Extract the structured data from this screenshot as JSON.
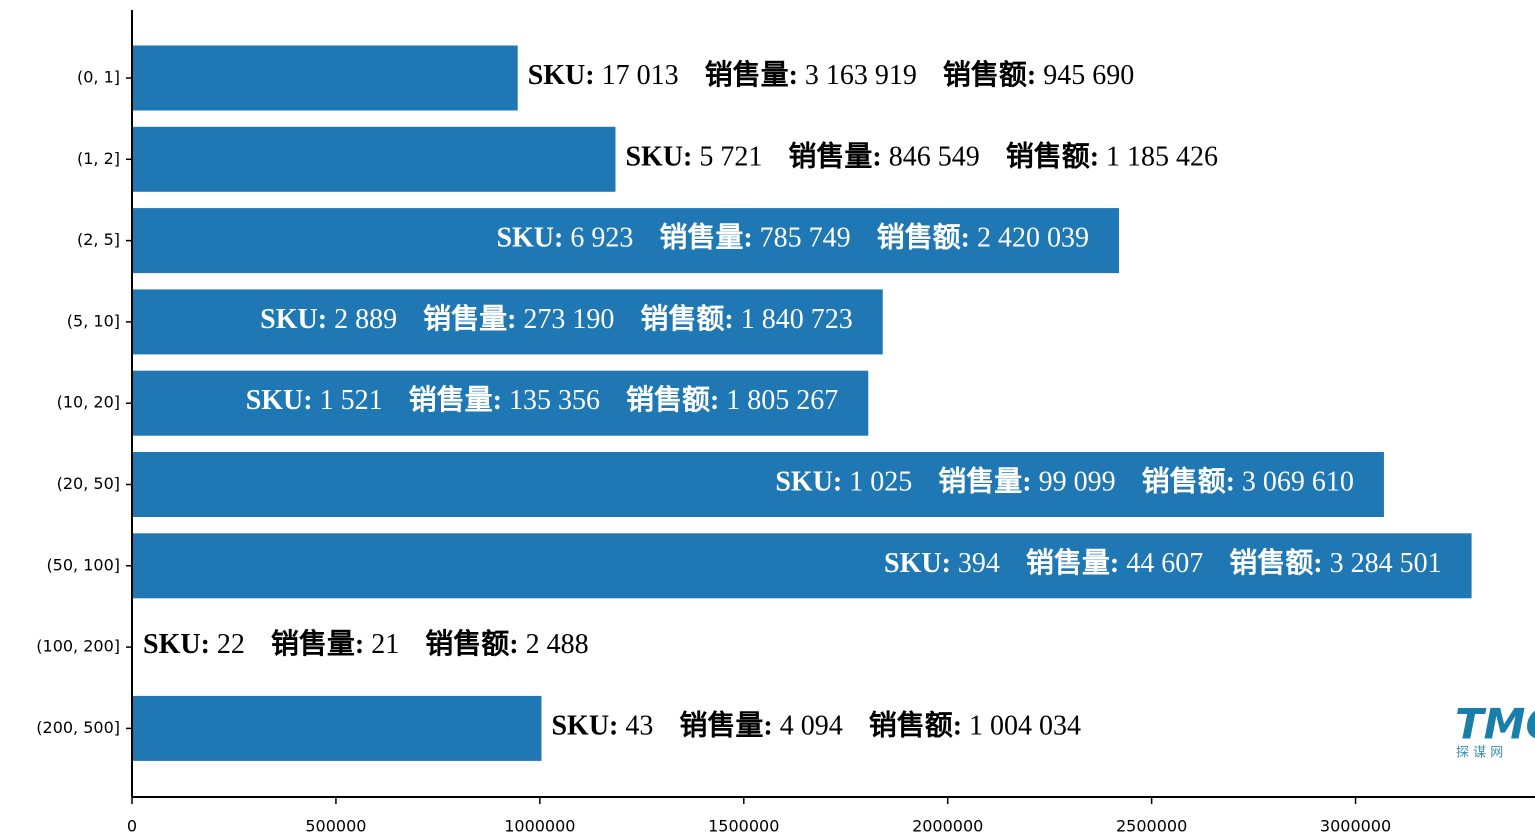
{
  "chart_data": {
    "type": "barh",
    "categories": [
      "(0, 1]",
      "(1, 2]",
      "(2, 5]",
      "(5, 10]",
      "(10, 20]",
      "(20, 50]",
      "(50, 100]",
      "(100, 200]",
      "(200, 500]"
    ],
    "values": [
      945690,
      1185426,
      2420039,
      1840723,
      1805267,
      3069610,
      3284501,
      2488,
      1004034
    ],
    "value_labels": [
      "945 690",
      "1 185 426",
      "2 420 039",
      "1 840 723",
      "1 805 267",
      "3 069 610",
      "3 284 501",
      "2 488",
      "1 004 034"
    ],
    "label_names": [
      "SKU:",
      "销售量:",
      "销售额:"
    ],
    "sku": {
      "values": [
        17013,
        5721,
        6923,
        2889,
        1521,
        1025,
        394,
        22,
        43
      ],
      "value_labels": [
        "17 013",
        "5 721",
        "6 923",
        "2 889",
        "1 521",
        "1 025",
        "394",
        "22",
        "43"
      ]
    },
    "volume": {
      "values": [
        3163919,
        846549,
        785749,
        273190,
        135356,
        99099,
        44607,
        21,
        4094
      ],
      "value_labels": [
        "3 163 919",
        "846 549",
        "785 749",
        "273 190",
        "135 356",
        "99 099",
        "44 607",
        "21",
        "4 094"
      ]
    },
    "color": "#1f77b4",
    "xlim": [
      0,
      3440000
    ],
    "xticks": [
      0,
      500000,
      1000000,
      1500000,
      2000000,
      2500000,
      3000000
    ],
    "watermark": {
      "logo": "TMC",
      "text": "探 谋 网"
    }
  }
}
